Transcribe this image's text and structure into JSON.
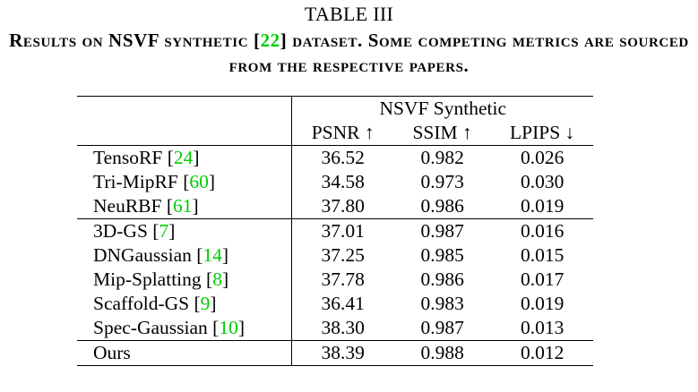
{
  "table_label": "TABLE III",
  "caption": {
    "before_cite": "Results on NSVF synthetic [",
    "cite": "22",
    "after_cite": "] dataset. Some competing metrics are sourced from the respective papers."
  },
  "header": {
    "group": "NSVF Synthetic",
    "columns": [
      "PSNR ↑",
      "SSIM ↑",
      "LPIPS ↓"
    ]
  },
  "rows": [
    {
      "method": "TensoRF",
      "ref": "24",
      "psnr": "36.52",
      "ssim": "0.982",
      "lpips": "0.026"
    },
    {
      "method": "Tri-MipRF",
      "ref": "60",
      "psnr": "34.58",
      "ssim": "0.973",
      "lpips": "0.030"
    },
    {
      "method": "NeuRBF",
      "ref": "61",
      "psnr": "37.80",
      "ssim": "0.986",
      "lpips": "0.019"
    },
    {
      "method": "3D-GS",
      "ref": "7",
      "psnr": "37.01",
      "ssim": "0.987",
      "lpips": "0.016"
    },
    {
      "method": "DNGaussian",
      "ref": "14",
      "psnr": "37.25",
      "ssim": "0.985",
      "lpips": "0.015"
    },
    {
      "method": "Mip-Splatting",
      "ref": "8",
      "psnr": "37.78",
      "ssim": "0.986",
      "lpips": "0.017"
    },
    {
      "method": "Scaffold-GS",
      "ref": "9",
      "psnr": "36.41",
      "ssim": "0.983",
      "lpips": "0.019"
    },
    {
      "method": "Spec-Gaussian",
      "ref": "10",
      "psnr": "38.30",
      "ssim": "0.987",
      "lpips": "0.013"
    },
    {
      "method": "Ours",
      "ref": "",
      "psnr": "38.39",
      "ssim": "0.988",
      "lpips": "0.012"
    }
  ],
  "colors": {
    "citation": "#00cc00",
    "text": "#000000",
    "background": "#ffffff"
  }
}
